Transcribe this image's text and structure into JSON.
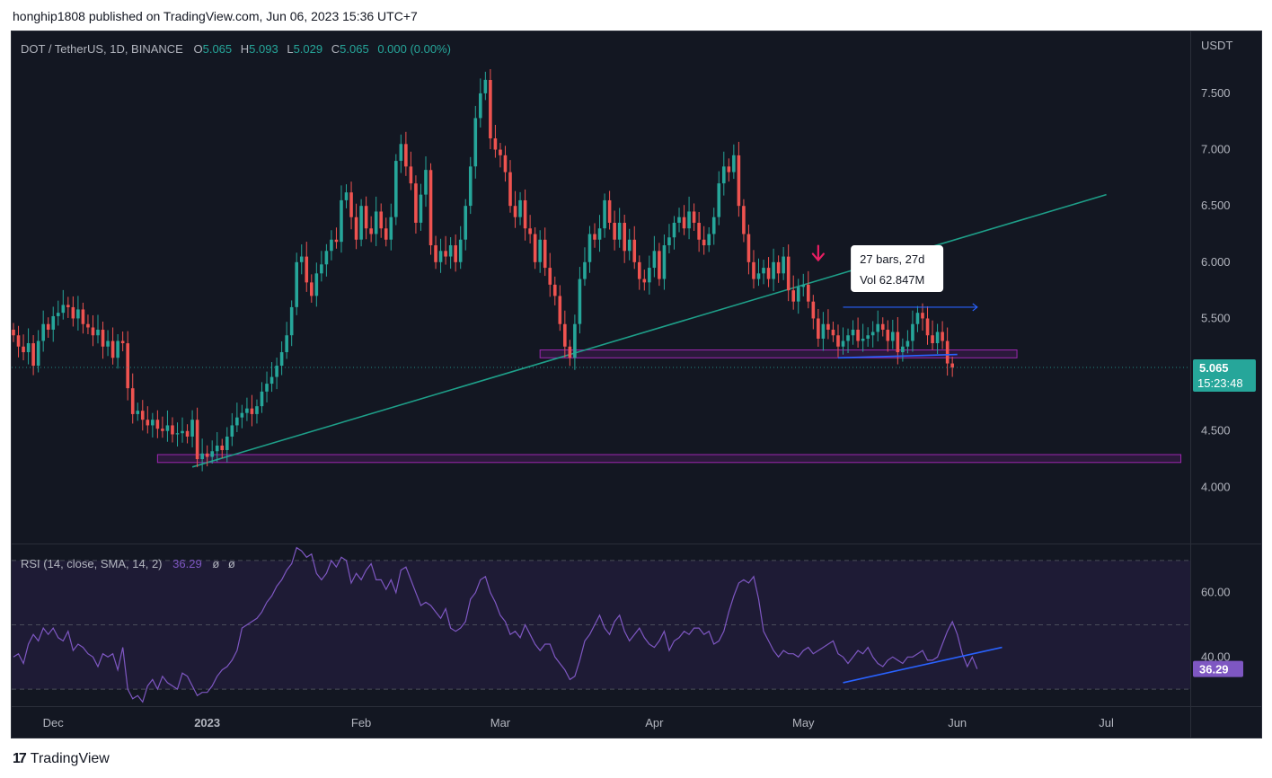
{
  "header": {
    "publisher": "honghip1808 published on TradingView.com, Jun 06, 2023 15:36 UTC+7"
  },
  "footer": {
    "logo_text": "TradingView"
  },
  "symbol_bar": {
    "symbol": "DOT / TetherUS, 1D, BINANCE",
    "open_label": "O",
    "open": "5.065",
    "high_label": "H",
    "high": "5.093",
    "low_label": "L",
    "low": "5.029",
    "close_label": "C",
    "close": "5.065",
    "change": "0.000 (0.00%)"
  },
  "price_axis": {
    "currency": "USDT",
    "ticks": [
      "7.500",
      "7.000",
      "6.500",
      "6.000",
      "5.500",
      "5.000",
      "4.500",
      "4.000"
    ],
    "last_price": "5.065",
    "countdown": "15:23:48"
  },
  "measure_tooltip": {
    "line1": "27 bars, 27d",
    "line2": "Vol 62.847M"
  },
  "rsi": {
    "title": "RSI (14, close, SMA, 14, 2)",
    "value": "36.29",
    "na1": "ø",
    "na2": "ø",
    "ticks": [
      "60.00",
      "40.00"
    ],
    "current_label": "36.29"
  },
  "time_axis": [
    "Dec",
    "2023",
    "Feb",
    "Mar",
    "Apr",
    "May",
    "Jun",
    "Jul"
  ],
  "colors": {
    "bg": "#131722",
    "up": "#26a69a",
    "down": "#ef5350",
    "text": "#b2b5be",
    "trendline": "#1e9f89",
    "zone": "#9c27b0",
    "blue": "#2962ff",
    "rsi_line": "#7e57c2",
    "rsi_band": "#1e1b35",
    "arrow": "#e91e63"
  },
  "chart_data": [
    {
      "type": "candlestick",
      "title": "DOT / TetherUS, 1D, BINANCE",
      "x_start": "2022-11-23",
      "x_ticks": [
        "Dec",
        "2023",
        "Feb",
        "Mar",
        "Apr",
        "May",
        "Jun",
        "Jul"
      ],
      "ylim": [
        3.5,
        8.05
      ],
      "y_unit": "USDT",
      "closes": [
        5.35,
        5.25,
        5.2,
        5.28,
        5.08,
        5.3,
        5.45,
        5.4,
        5.52,
        5.55,
        5.62,
        5.6,
        5.5,
        5.58,
        5.45,
        5.42,
        5.35,
        5.4,
        5.25,
        5.3,
        5.15,
        5.3,
        5.28,
        4.88,
        4.65,
        4.68,
        4.6,
        4.55,
        4.6,
        4.52,
        4.5,
        4.55,
        4.47,
        4.48,
        4.5,
        4.45,
        4.6,
        4.25,
        4.3,
        4.27,
        4.32,
        4.37,
        4.33,
        4.45,
        4.55,
        4.62,
        4.66,
        4.7,
        4.65,
        4.72,
        4.85,
        4.92,
        4.98,
        5.08,
        5.2,
        5.35,
        5.6,
        6.0,
        6.05,
        5.82,
        5.7,
        5.9,
        5.98,
        6.1,
        6.2,
        6.18,
        6.55,
        6.62,
        6.4,
        6.2,
        6.5,
        6.3,
        6.25,
        6.45,
        6.3,
        6.2,
        6.4,
        6.9,
        7.05,
        6.85,
        6.7,
        6.35,
        6.6,
        6.82,
        6.15,
        6.0,
        6.1,
        6.05,
        6.15,
        6.0,
        6.2,
        6.5,
        6.85,
        7.28,
        7.5,
        7.62,
        7.1,
        7.0,
        6.95,
        6.8,
        6.5,
        6.4,
        6.55,
        6.3,
        6.25,
        6.0,
        6.2,
        5.95,
        5.8,
        5.7,
        5.45,
        5.25,
        5.15,
        5.45,
        5.85,
        6.0,
        6.25,
        6.2,
        6.3,
        6.55,
        6.35,
        6.2,
        6.35,
        6.1,
        6.2,
        6.0,
        5.85,
        5.82,
        5.95,
        6.1,
        5.85,
        6.15,
        6.22,
        6.35,
        6.4,
        6.3,
        6.45,
        6.35,
        6.2,
        6.15,
        6.25,
        6.4,
        6.7,
        6.85,
        6.8,
        6.95,
        6.5,
        6.25,
        6.0,
        5.85,
        5.9,
        5.95,
        5.85,
        6.0,
        5.9,
        6.05,
        5.75,
        5.65,
        5.78,
        5.8,
        5.65,
        5.5,
        5.32,
        5.45,
        5.4,
        5.35,
        5.25,
        5.3,
        5.35,
        5.4,
        5.3,
        5.32,
        5.35,
        5.38,
        5.45,
        5.4,
        5.3,
        5.38,
        5.2,
        5.25,
        5.3,
        5.45,
        5.55,
        5.5,
        5.35,
        5.28,
        5.38,
        5.3,
        5.1,
        5.065
      ],
      "last_price": 5.065,
      "trendline": {
        "from": [
          "2022-12-29",
          4.18
        ],
        "to": [
          "2023-07-01",
          6.6
        ]
      },
      "support_zones": [
        {
          "x": [
            "2023-03-09",
            "2023-06-13"
          ],
          "y": [
            5.15,
            5.22
          ]
        },
        {
          "x": [
            "2022-12-22",
            "2023-07-16"
          ],
          "y": [
            4.22,
            4.29
          ]
        }
      ],
      "date_range_measure": {
        "bars": 27,
        "days": 27,
        "volume": "62.847M"
      }
    },
    {
      "type": "line",
      "title": "RSI (14, close, SMA, 14, 2)",
      "ylim": [
        25,
        75
      ],
      "bands": [
        30,
        50,
        70
      ],
      "y_ticks": [
        60,
        40
      ],
      "last_value": 36.29,
      "values": [
        40,
        41,
        38,
        44,
        47,
        45,
        49,
        47,
        49,
        46,
        45,
        48,
        42,
        44,
        43,
        41,
        40,
        37,
        41,
        40,
        41,
        36,
        43,
        30,
        27,
        28,
        26,
        31,
        33,
        30,
        34,
        32,
        31,
        30,
        35,
        34,
        31,
        28,
        29,
        29,
        31,
        34,
        36,
        37,
        39,
        42,
        49,
        50,
        51,
        52,
        54,
        57,
        59,
        62,
        64,
        67,
        69,
        74,
        73,
        71,
        72,
        66,
        64,
        66,
        70,
        68,
        71,
        70,
        63,
        66,
        64,
        67,
        69,
        64,
        64,
        61,
        64,
        60,
        67,
        68,
        64,
        60,
        56,
        57,
        56,
        54,
        52,
        55,
        49,
        48,
        49,
        51,
        58,
        60,
        64,
        65,
        60,
        57,
        53,
        51,
        47,
        48,
        46,
        50,
        47,
        44,
        42,
        44,
        44,
        40,
        38,
        36,
        33,
        34,
        39,
        45,
        47,
        50,
        53,
        49,
        47,
        51,
        53,
        48,
        45,
        47,
        49,
        46,
        44,
        43,
        45,
        48,
        42,
        45,
        46,
        48,
        47,
        49,
        49,
        47,
        48,
        44,
        45,
        48,
        54,
        59,
        63,
        64,
        63,
        65,
        58,
        48,
        45,
        42,
        40,
        42,
        41,
        41,
        40,
        42,
        43,
        41,
        42,
        43,
        44,
        45,
        41,
        40,
        38,
        40,
        42,
        41,
        43,
        40,
        38,
        37,
        39,
        40,
        39,
        38,
        40,
        40,
        41,
        42,
        39,
        39,
        40,
        44,
        48,
        51,
        47,
        41,
        37,
        40,
        36.29
      ]
    }
  ]
}
